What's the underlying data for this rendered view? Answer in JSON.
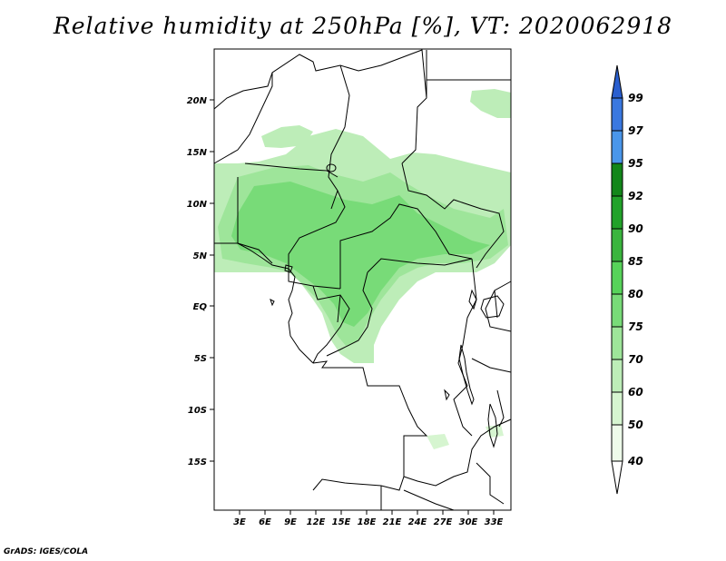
{
  "title": "Relative humidity at 250hPa [%], VT: 2020062918",
  "credit": "GrADS: IGES/COLA",
  "map": {
    "lat_labels": [
      "20N",
      "15N",
      "10N",
      "5N",
      "EQ",
      "5S",
      "10S",
      "15S"
    ],
    "lat_values": [
      20,
      15,
      10,
      5,
      0,
      -5,
      -10,
      -15
    ],
    "lon_labels": [
      "3E",
      "6E",
      "9E",
      "12E",
      "15E",
      "18E",
      "21E",
      "24E",
      "27E",
      "30E",
      "33E"
    ],
    "lon_values": [
      3,
      6,
      9,
      12,
      15,
      18,
      21,
      24,
      27,
      30,
      33
    ],
    "lon_range": [
      0,
      35
    ],
    "lat_range": [
      -20,
      25
    ]
  },
  "colorbar": {
    "labels": [
      "99",
      "97",
      "95",
      "92",
      "90",
      "85",
      "80",
      "75",
      "70",
      "60",
      "50",
      "40"
    ],
    "colors": [
      "#2a5fcf",
      "#3a78e0",
      "#4a96ea",
      "#13861a",
      "#22a22a",
      "#3ab53e",
      "#57d35a",
      "#78db78",
      "#9ee59a",
      "#bdedb8",
      "#d6f5d0",
      "#eefbea",
      "#ffffff"
    ]
  }
}
